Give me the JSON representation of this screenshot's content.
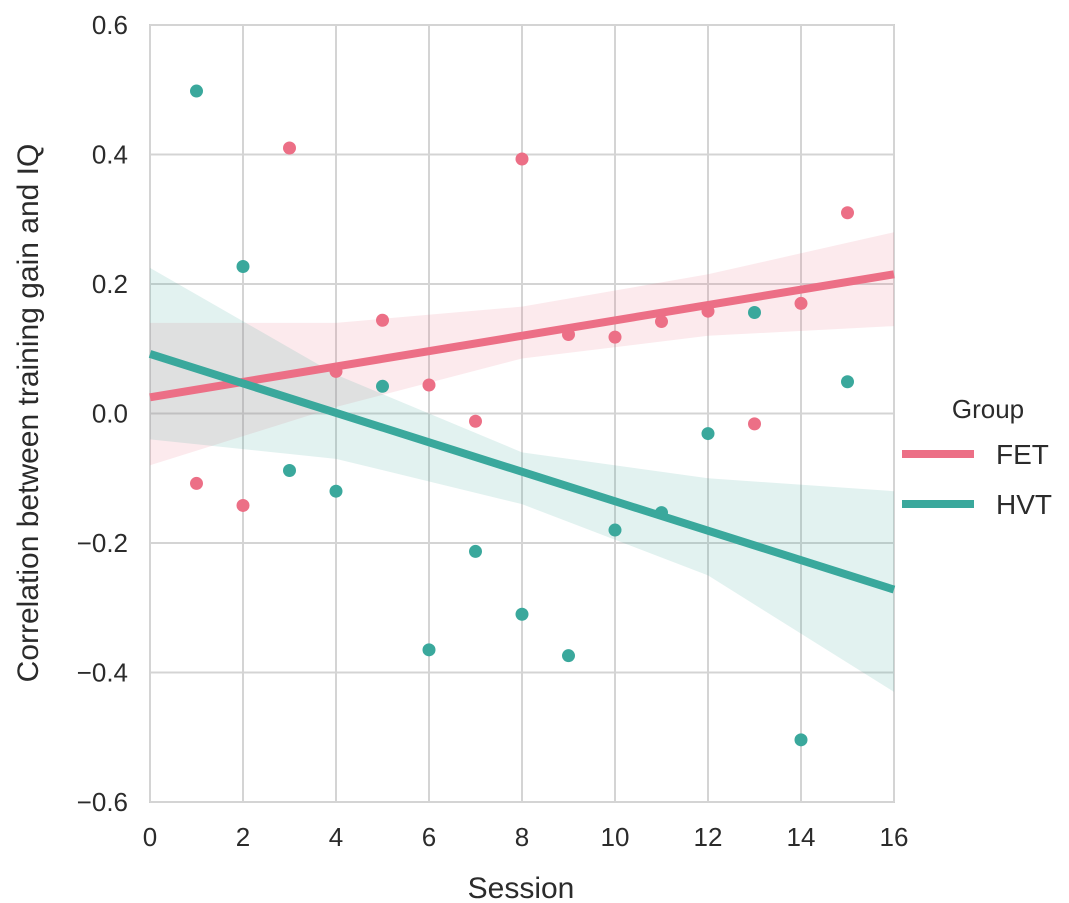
{
  "chart_data": {
    "type": "scatter",
    "xlabel": "Session",
    "ylabel": "Correlation between training gain and IQ",
    "xlim": [
      0,
      16
    ],
    "ylim": [
      -0.6,
      0.6
    ],
    "xticks": [
      0,
      2,
      4,
      6,
      8,
      10,
      12,
      14,
      16
    ],
    "yticks": [
      0.6,
      0.4,
      0.2,
      0.0,
      -0.2,
      -0.4,
      -0.6
    ],
    "ytick_labels": [
      "0.6",
      "0.4",
      "0.2",
      "0.0",
      "−0.2",
      "−0.4",
      "−0.6"
    ],
    "grid": true,
    "legend": {
      "title": "Group",
      "placement": "right"
    },
    "series": [
      {
        "name": "FET",
        "color": "#ec6f86",
        "points": [
          [
            1,
            -0.108
          ],
          [
            2,
            -0.142
          ],
          [
            3,
            0.41
          ],
          [
            4,
            0.065
          ],
          [
            5,
            0.144
          ],
          [
            6,
            0.044
          ],
          [
            7,
            -0.012
          ],
          [
            8,
            0.393
          ],
          [
            9,
            0.122
          ],
          [
            10,
            0.118
          ],
          [
            11,
            0.142
          ],
          [
            12,
            0.158
          ],
          [
            13,
            -0.016
          ],
          [
            14,
            0.17
          ],
          [
            15,
            0.31
          ]
        ],
        "fit": {
          "x": [
            0,
            16
          ],
          "y": [
            0.025,
            0.215
          ]
        },
        "ci": {
          "x": [
            0,
            4,
            8,
            12,
            16
          ],
          "upper": [
            0.14,
            0.14,
            0.165,
            0.215,
            0.28
          ],
          "lower": [
            -0.08,
            0.01,
            0.085,
            0.12,
            0.135
          ]
        }
      },
      {
        "name": "HVT",
        "color": "#3aa89c",
        "points": [
          [
            1,
            0.498
          ],
          [
            2,
            0.227
          ],
          [
            3,
            -0.088
          ],
          [
            4,
            -0.12
          ],
          [
            5,
            0.042
          ],
          [
            6,
            -0.365
          ],
          [
            7,
            -0.213
          ],
          [
            8,
            -0.31
          ],
          [
            9,
            -0.374
          ],
          [
            10,
            -0.18
          ],
          [
            11,
            -0.153
          ],
          [
            12,
            -0.031
          ],
          [
            13,
            0.156
          ],
          [
            14,
            -0.504
          ],
          [
            15,
            0.049
          ]
        ],
        "fit": {
          "x": [
            0,
            16
          ],
          "y": [
            0.092,
            -0.272
          ]
        },
        "ci": {
          "x": [
            0,
            4,
            8,
            12,
            16
          ],
          "upper": [
            0.225,
            0.06,
            -0.06,
            -0.1,
            -0.12
          ],
          "lower": [
            -0.04,
            -0.07,
            -0.14,
            -0.25,
            -0.43
          ]
        }
      }
    ]
  }
}
